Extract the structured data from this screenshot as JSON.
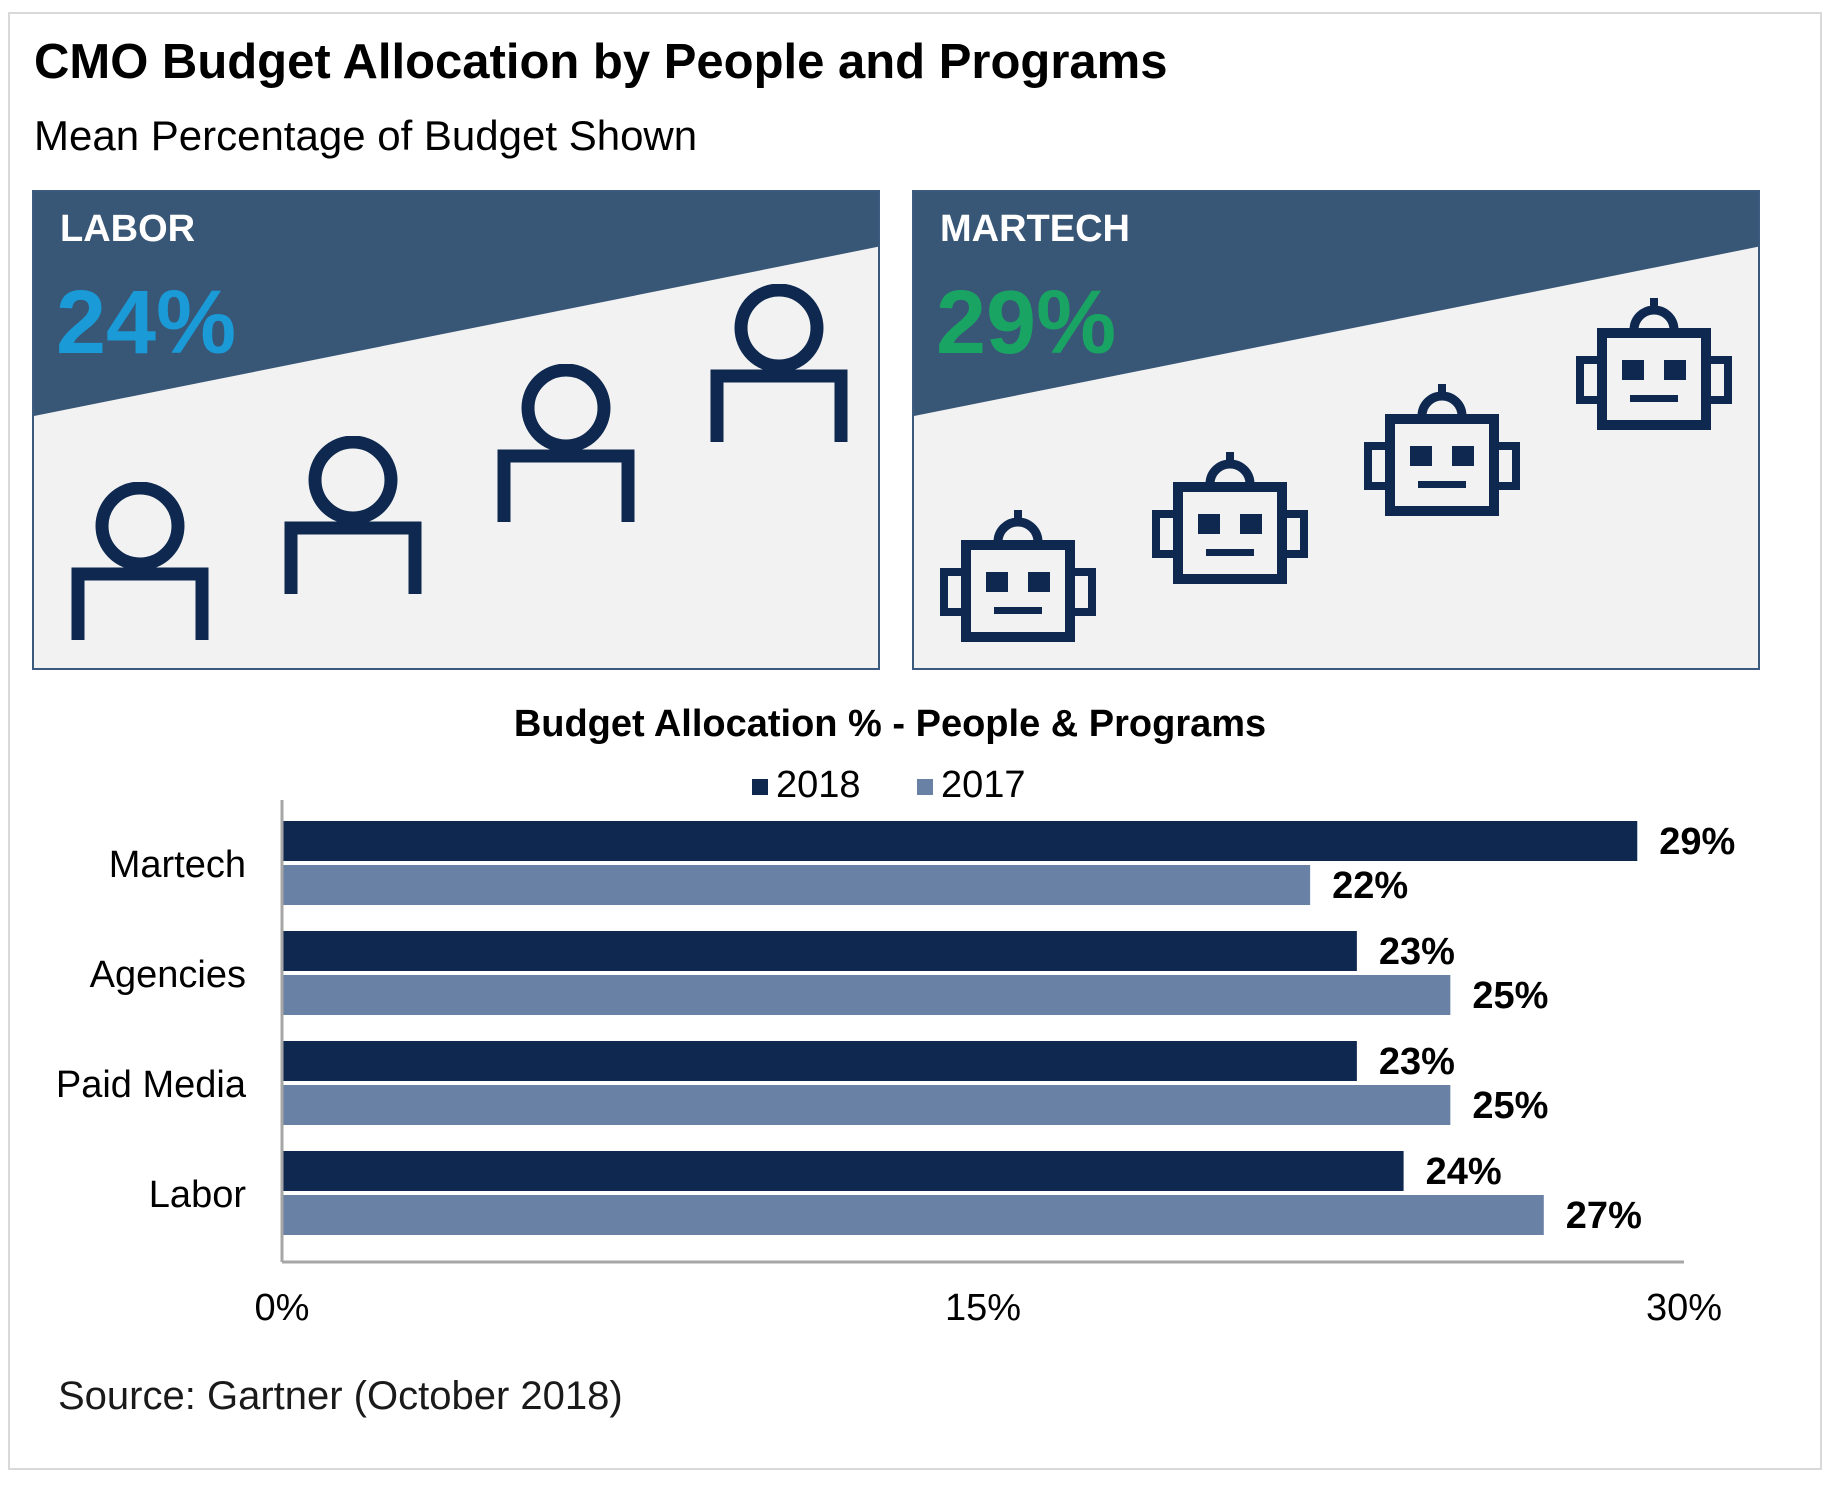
{
  "header": {
    "title": "CMO Budget Allocation by People and Programs",
    "subtitle": "Mean Percentage of Budget Shown"
  },
  "panels": {
    "labor": {
      "label": "LABOR",
      "value": "24%",
      "value_color": "#1a9ad6",
      "icon": "person-icon"
    },
    "martech": {
      "label": "MARTECH",
      "value": "29%",
      "value_color": "#19a463",
      "icon": "robot-icon"
    }
  },
  "colors": {
    "panel_band": "#385676",
    "panel_bg": "#f2f2f2",
    "icon": "#0e2850",
    "series_2018": "#0e2850",
    "series_2017": "#6a81a6"
  },
  "chart_data": {
    "type": "bar",
    "orientation": "horizontal",
    "title": "Budget Allocation % - People & Programs",
    "categories": [
      "Martech",
      "Agencies",
      "Paid Media",
      "Labor"
    ],
    "series": [
      {
        "name": "2018",
        "values": [
          29,
          23,
          23,
          24
        ],
        "labels": [
          "29%",
          "23%",
          "23%",
          "24%"
        ]
      },
      {
        "name": "2017",
        "values": [
          22,
          25,
          25,
          27
        ],
        "labels": [
          "22%",
          "25%",
          "25%",
          "27%"
        ]
      }
    ],
    "xlim": [
      0,
      30
    ],
    "x_ticks": [
      0,
      15,
      30
    ],
    "x_tick_labels": [
      "0%",
      "15%",
      "30%"
    ],
    "legend_position": "top",
    "grid": false
  },
  "footer": {
    "source": "Source: Gartner (October 2018)"
  }
}
